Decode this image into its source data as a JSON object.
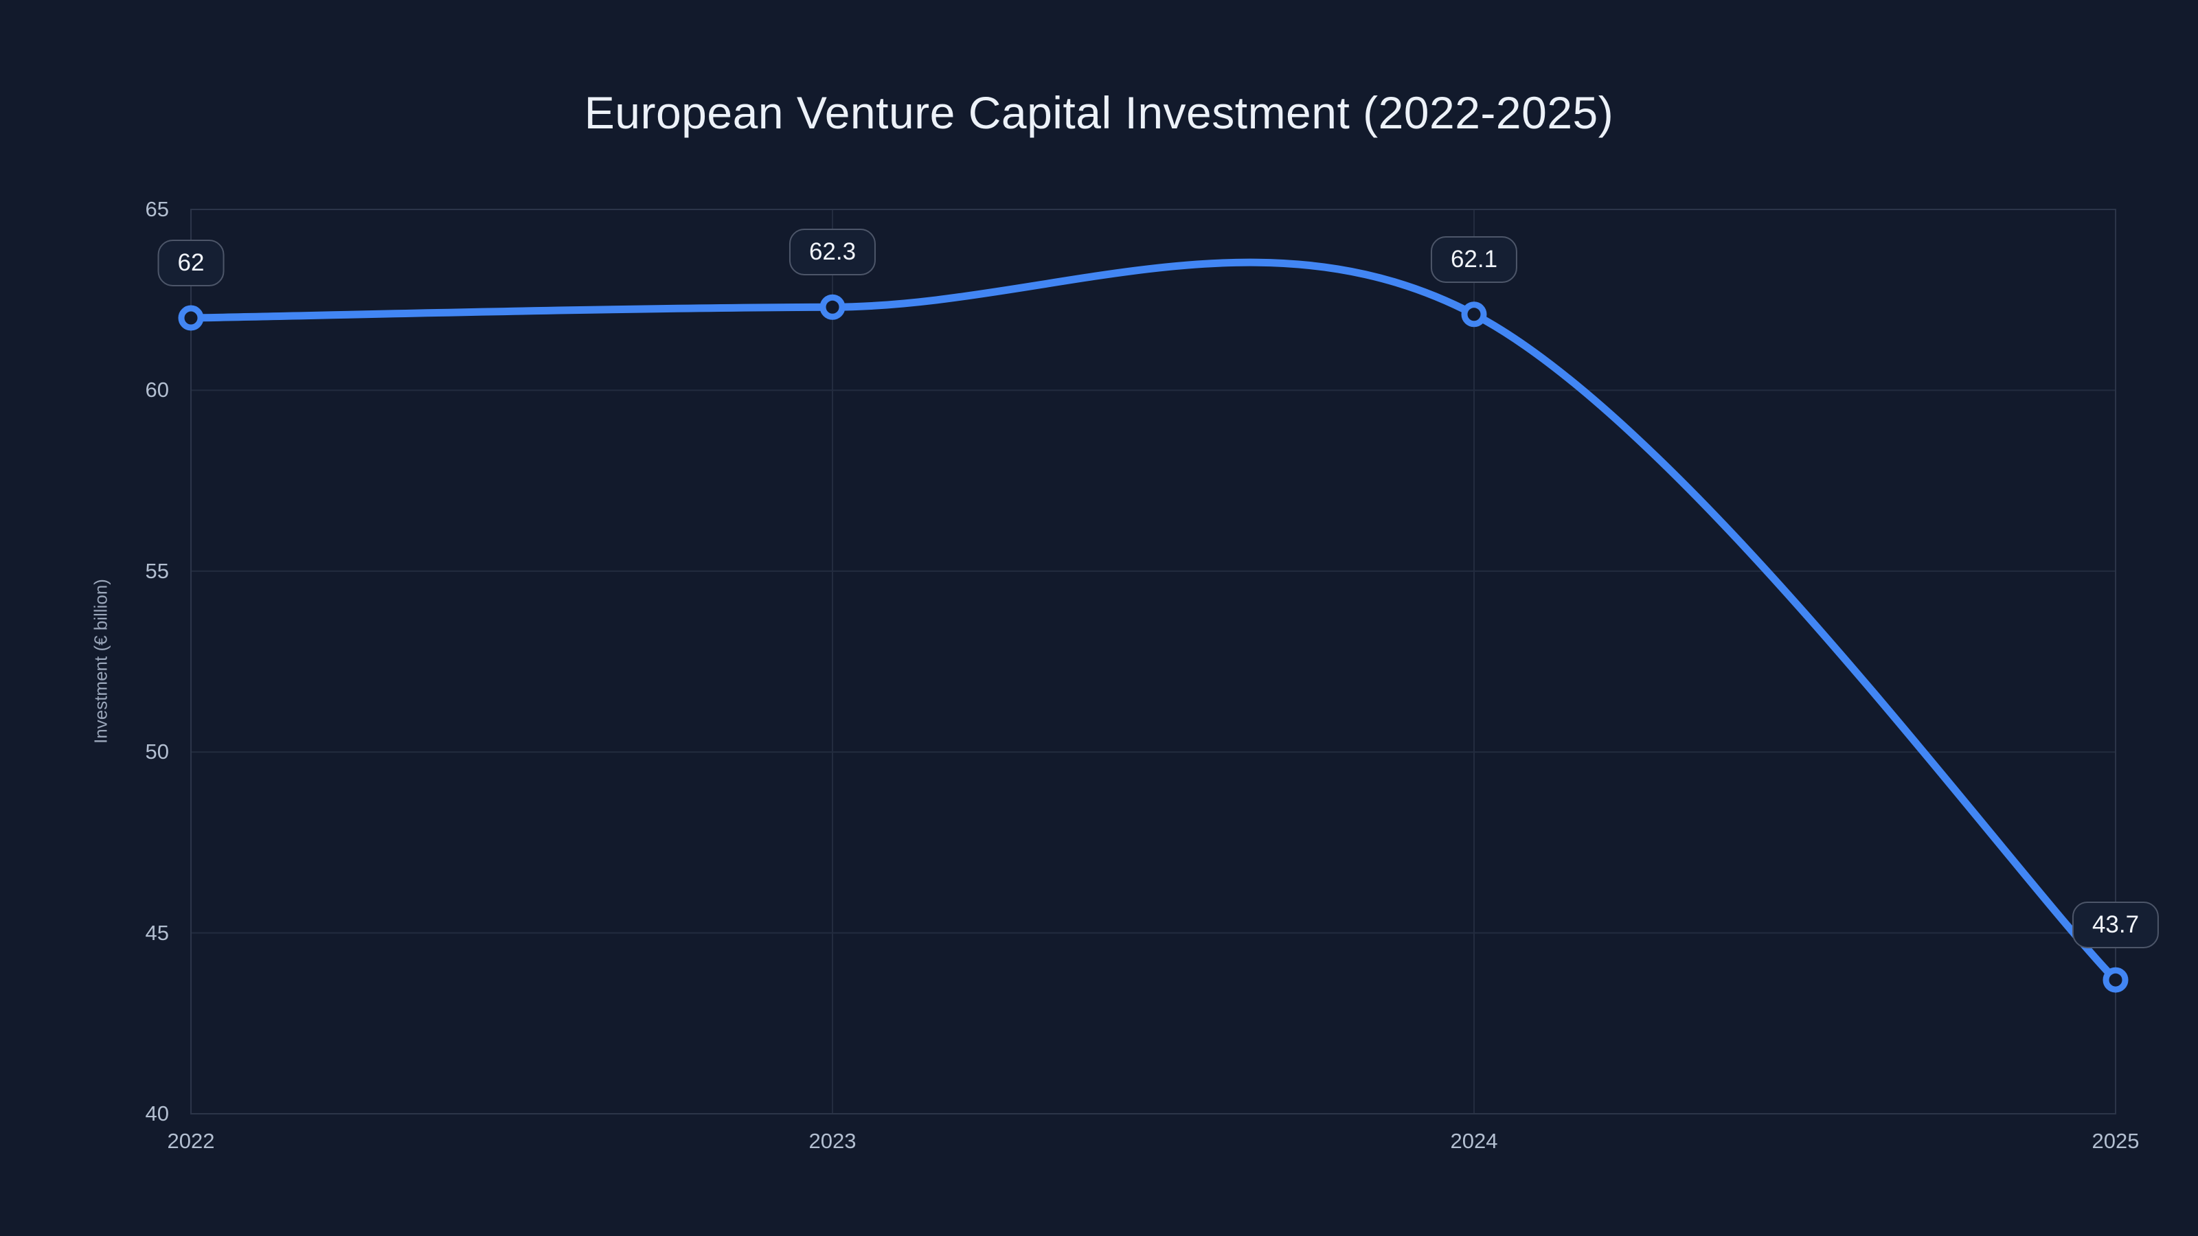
{
  "chart_data": {
    "type": "line",
    "title": "European Venture Capital Investment (2022-2025)",
    "xlabel": "",
    "ylabel": "Investment (€ billion)",
    "categories": [
      "2022",
      "2023",
      "2024",
      "2025"
    ],
    "series": [
      {
        "name": "Investment",
        "values": [
          62,
          62.3,
          62.1,
          43.7
        ]
      }
    ],
    "point_labels": [
      "62",
      "62.3",
      "62.1",
      "43.7"
    ],
    "ylim": [
      40,
      65
    ],
    "yticks": [
      40,
      45,
      50,
      55,
      60,
      65
    ],
    "grid": true,
    "legend_position": "none",
    "line_style": "smooth-spline",
    "marker": "open-circle",
    "colors": {
      "background": "#121a2c",
      "line": "#4286f4",
      "marker_ring": "#4286f4",
      "marker_fill": "#121a2c",
      "gridline": "#232c3f",
      "plot_border": "#2c3549",
      "tick_label": "#b3bfd1",
      "axis_title": "#9aa6ba",
      "chart_title": "#ecf1f8",
      "badge_border": "#4d5669",
      "badge_background": "#151f33",
      "badge_text": "#f2f5fa"
    }
  }
}
